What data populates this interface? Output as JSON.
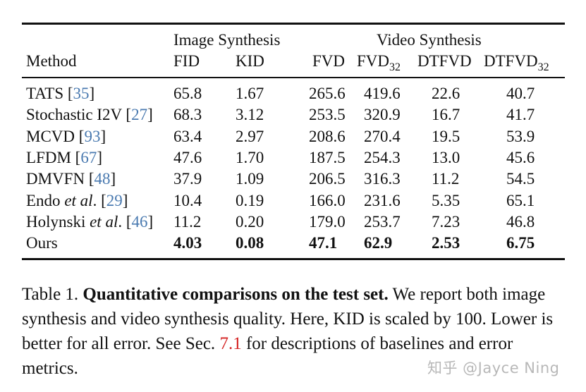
{
  "table": {
    "groups": {
      "image": "Image Synthesis",
      "video": "Video Synthesis"
    },
    "headers": {
      "method": "Method",
      "fid": "FID",
      "kid": "KID",
      "fvd": "FVD",
      "fvd32": "FVD",
      "fvd32_sub": "32",
      "dtfvd": "DTFVD",
      "dtfvd32": "DTFVD",
      "dtfvd32_sub": "32"
    },
    "rows": [
      {
        "name": "TATS",
        "name_it": "",
        "name_tail": "",
        "cite": "35",
        "fid": "65.8",
        "kid": "1.67",
        "fvd": "265.6",
        "fvd32": "419.6",
        "dtfvd": "22.6",
        "dtfvd32": "40.7"
      },
      {
        "name": "Stochastic I2V",
        "name_it": "",
        "name_tail": "",
        "cite": "27",
        "fid": "68.3",
        "kid": "3.12",
        "fvd": "253.5",
        "fvd32": "320.9",
        "dtfvd": "16.7",
        "dtfvd32": "41.7"
      },
      {
        "name": "MCVD",
        "name_it": "",
        "name_tail": "",
        "cite": "93",
        "fid": "63.4",
        "kid": "2.97",
        "fvd": "208.6",
        "fvd32": "270.4",
        "dtfvd": "19.5",
        "dtfvd32": "53.9"
      },
      {
        "name": "LFDM",
        "name_it": "",
        "name_tail": "",
        "cite": "67",
        "fid": "47.6",
        "kid": "1.70",
        "fvd": "187.5",
        "fvd32": "254.3",
        "dtfvd": "13.0",
        "dtfvd32": "45.6"
      },
      {
        "name": "DMVFN",
        "name_it": "",
        "name_tail": "",
        "cite": "48",
        "fid": "37.9",
        "kid": "1.09",
        "fvd": "206.5",
        "fvd32": "316.3",
        "dtfvd": "11.2",
        "dtfvd32": "54.5"
      },
      {
        "name": "Endo",
        "name_it": "et al",
        "name_tail": ".",
        "cite": "29",
        "fid": "10.4",
        "kid": "0.19",
        "fvd": "166.0",
        "fvd32": "231.6",
        "dtfvd": "5.35",
        "dtfvd32": "65.1"
      },
      {
        "name": "Holynski",
        "name_it": "et al",
        "name_tail": ".",
        "cite": "46",
        "fid": "11.2",
        "kid": "0.20",
        "fvd": "179.0",
        "fvd32": "253.7",
        "dtfvd": "7.23",
        "dtfvd32": "46.8"
      },
      {
        "name": "Ours",
        "name_it": "",
        "name_tail": "",
        "cite": "",
        "fid": "4.03",
        "kid": "0.08",
        "fvd": "47.1",
        "fvd32": "62.9",
        "dtfvd": "2.53",
        "dtfvd32": "6.75"
      }
    ]
  },
  "caption": {
    "label": "Table 1.",
    "title": "Quantitative comparisons on the test set.",
    "text_1": "We report both image synthesis and video synthesis quality. Here, KID is scaled by 100. Lower is better for all error. See Sec.",
    "ref": "7.1",
    "text_2": "for descriptions of baselines and error metrics."
  },
  "watermark": "知乎 @Jayce Ning",
  "colors": {
    "citation": "#4a7ab0",
    "section_ref": "#d42020",
    "watermark": "#b8b8b8"
  }
}
